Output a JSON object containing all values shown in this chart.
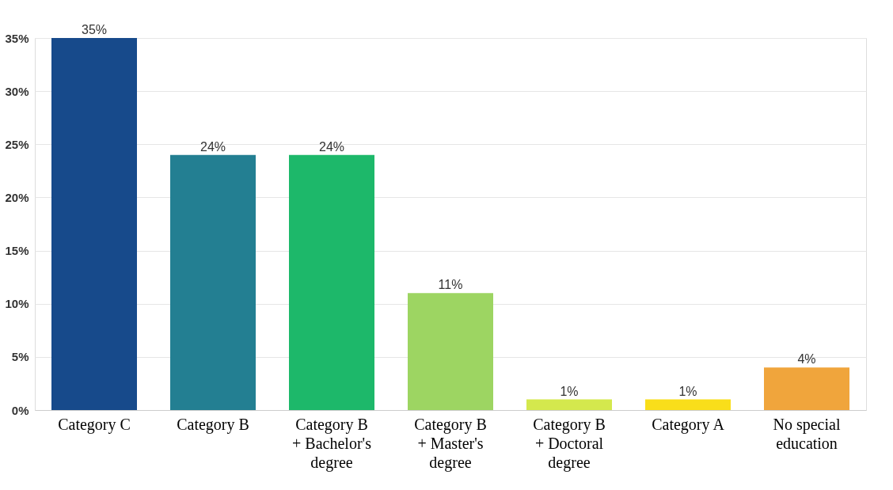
{
  "chart_data": {
    "type": "bar",
    "categories": [
      "Category C",
      "Category B",
      "Category B + Bachelor's degree",
      "Category B + Master's degree",
      "Category B + Doctoral degree",
      "Category A",
      "No special education"
    ],
    "values": [
      35,
      24,
      24,
      11,
      1,
      1,
      4
    ],
    "colors": [
      "#174a8b",
      "#237f92",
      "#1db86a",
      "#9dd562",
      "#d4e84d",
      "#f9de1a",
      "#f0a53c"
    ],
    "value_labels": [
      "35%",
      "24%",
      "24%",
      "11%",
      "1%",
      "1%",
      "4%"
    ],
    "ylim": [
      0,
      35
    ],
    "yticks": [
      {
        "value": 0,
        "label": "0%"
      },
      {
        "value": 5,
        "label": "5%"
      },
      {
        "value": 10,
        "label": "10%"
      },
      {
        "value": 15,
        "label": "15%"
      },
      {
        "value": 20,
        "label": "20%"
      },
      {
        "value": 25,
        "label": "25%"
      },
      {
        "value": 30,
        "label": "30%"
      },
      {
        "value": 35,
        "label": "35%"
      }
    ],
    "grid": "y"
  }
}
